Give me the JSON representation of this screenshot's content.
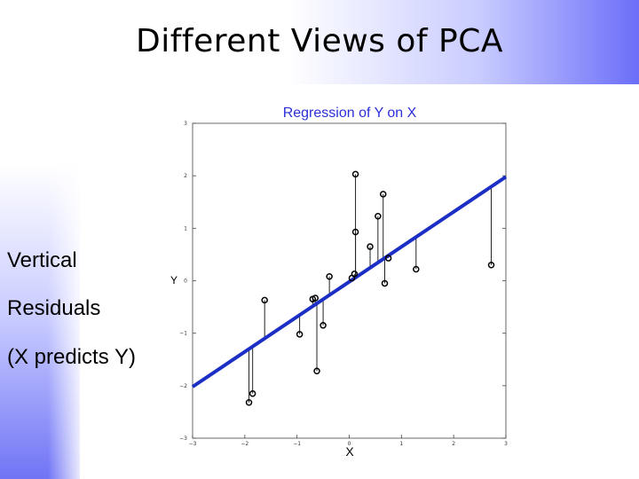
{
  "slide": {
    "title": "Different Views of PCA",
    "side_text": [
      "Vertical",
      "Residuals",
      "(X predicts Y)"
    ]
  },
  "colors": {
    "fit_line": "#1c2fc4",
    "plot_title": "#2b2fd8"
  },
  "chart_data": {
    "type": "scatter",
    "title": "Regression of Y on X",
    "xlabel": "X",
    "ylabel": "Y",
    "xlim": [
      -3,
      3
    ],
    "ylim": [
      -3,
      3
    ],
    "x_ticks": [
      -3,
      -2,
      -1,
      0,
      1,
      2,
      3
    ],
    "x_tick_labels": [
      "−3",
      "−2",
      "−1",
      "0",
      "1",
      "2",
      "3"
    ],
    "y_ticks": [
      -3,
      -2,
      -1,
      0,
      1,
      2,
      3
    ],
    "y_tick_labels": [
      "−3",
      "−2",
      "−1",
      "0",
      "1",
      "2",
      "3"
    ],
    "grid": false,
    "points": [
      {
        "x": -1.92,
        "y": -2.32
      },
      {
        "x": -1.85,
        "y": -2.15
      },
      {
        "x": -1.62,
        "y": -0.37
      },
      {
        "x": -0.95,
        "y": -1.02
      },
      {
        "x": -0.7,
        "y": -0.35
      },
      {
        "x": -0.65,
        "y": -0.33
      },
      {
        "x": -0.62,
        "y": -1.72
      },
      {
        "x": -0.5,
        "y": -0.85
      },
      {
        "x": -0.38,
        "y": 0.08
      },
      {
        "x": 0.05,
        "y": 0.05
      },
      {
        "x": 0.1,
        "y": 0.13
      },
      {
        "x": 0.12,
        "y": 2.03
      },
      {
        "x": 0.12,
        "y": 0.93
      },
      {
        "x": 0.4,
        "y": 0.65
      },
      {
        "x": 0.55,
        "y": 1.23
      },
      {
        "x": 0.65,
        "y": 1.65
      },
      {
        "x": 0.68,
        "y": -0.05
      },
      {
        "x": 0.75,
        "y": 0.43
      },
      {
        "x": 1.28,
        "y": 0.22
      },
      {
        "x": 2.72,
        "y": 0.3
      }
    ],
    "fit_line": {
      "x": [
        -3,
        3
      ],
      "y": [
        -2.02,
        1.98
      ]
    },
    "residuals": "vertical"
  }
}
